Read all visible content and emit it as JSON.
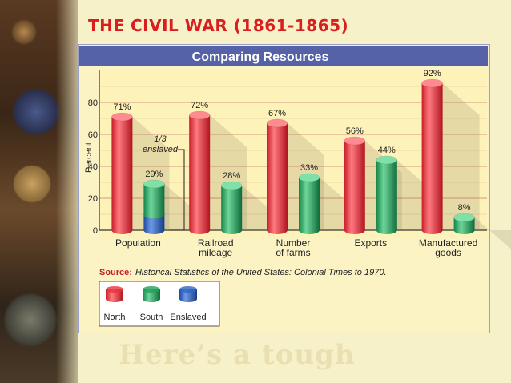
{
  "slide": {
    "title": "THE CIVIL WAR (1861-1865)",
    "subtitle": "Here’s a tough"
  },
  "chart_data": {
    "type": "bar",
    "title": "Comparing Resources",
    "ylabel": "Percent",
    "ylim": [
      0,
      100
    ],
    "yticks": [
      0,
      20,
      40,
      60,
      80
    ],
    "grid": true,
    "categories": [
      "Population",
      "Railroad\nmileage",
      "Number\nof farms",
      "Exports",
      "Manufactured\ngoods"
    ],
    "series": [
      {
        "name": "North",
        "values": [
          71,
          72,
          67,
          56,
          92
        ],
        "color": "#e8333b"
      },
      {
        "name": "South",
        "values": [
          29,
          28,
          33,
          44,
          8
        ],
        "color": "#22a05a"
      }
    ],
    "stacked_part": {
      "name": "Enslaved",
      "category_index": 0,
      "value": 9.67,
      "color": "#2f67c4"
    },
    "data_labels": {
      "North": [
        "71%",
        "72%",
        "67%",
        "56%",
        "92%"
      ],
      "South": [
        "29%",
        "28%",
        "33%",
        "44%",
        "8%"
      ]
    },
    "annotation": "1/3\nenslaved",
    "source_label": "Source:",
    "source_text": "Historical Statistics of the United States: Colonial Times to 1970.",
    "legend": [
      {
        "name": "North",
        "color": "#e8333b"
      },
      {
        "name": "South",
        "color": "#22a05a"
      },
      {
        "name": "Enslaved",
        "color": "#2f67c4"
      }
    ],
    "legend_position": "bottom-left",
    "title_bar_color": "#5562a8",
    "gridline_color": "#e6a88a"
  }
}
